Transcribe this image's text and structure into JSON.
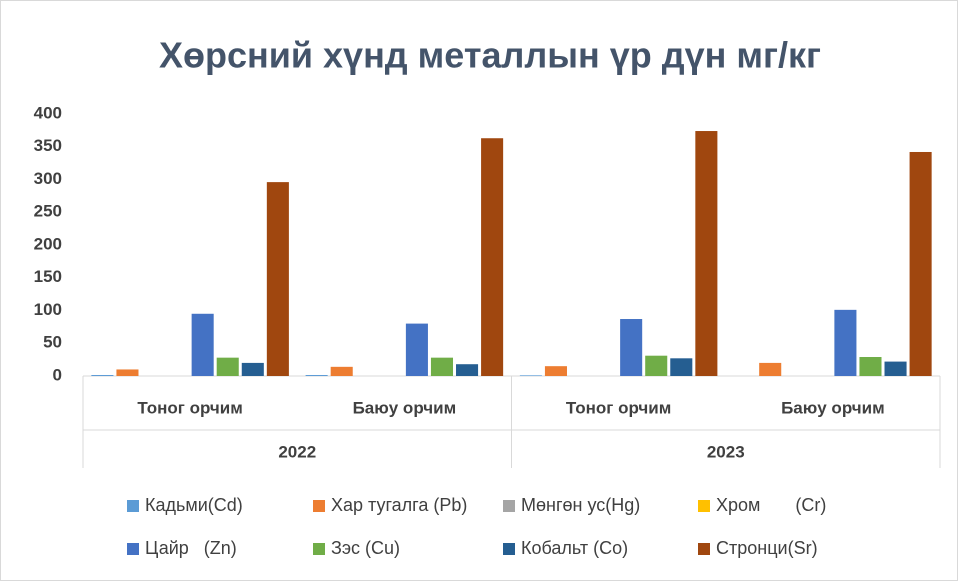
{
  "chart_data": {
    "type": "bar",
    "title": "Хөрсний хүнд металлын үр дүн мг/кг",
    "categories": [
      "Тоног орчим",
      "Баюу орчим",
      "Тоног орчим",
      "Баюу орчим"
    ],
    "groups": [
      "2022",
      "2023"
    ],
    "series": [
      {
        "name": "Кадьми(Cd)",
        "color": "#5b9bd5",
        "values": [
          1.5,
          1.5,
          1,
          0
        ]
      },
      {
        "name": "Хар тугалга (Pb)",
        "color": "#ed7d31",
        "values": [
          10,
          14,
          15,
          20
        ]
      },
      {
        "name": "Мөнгөн ус(Hg)",
        "color": "#a5a5a5",
        "values": [
          0,
          0,
          0,
          0
        ]
      },
      {
        "name": "Хром       (Cr)",
        "color": "#ffc000",
        "values": [
          0,
          0,
          0,
          0
        ]
      },
      {
        "name": "Цайр   (Zn)",
        "color": "#4472c4",
        "values": [
          95,
          80,
          87,
          101
        ]
      },
      {
        "name": "Зэс (Cu)",
        "color": "#70ad47",
        "values": [
          28,
          28,
          31,
          29
        ]
      },
      {
        "name": "Кобальт (Co)",
        "color": "#255e91",
        "values": [
          20,
          18,
          27,
          22
        ]
      },
      {
        "name": "Стронци(Sr)",
        "color": "#a0470f",
        "values": [
          296,
          363,
          374,
          342
        ]
      }
    ],
    "ylim": [
      0,
      400
    ],
    "yticks": [
      0,
      50,
      100,
      150,
      200,
      250,
      300,
      350,
      400
    ],
    "grid": false
  }
}
